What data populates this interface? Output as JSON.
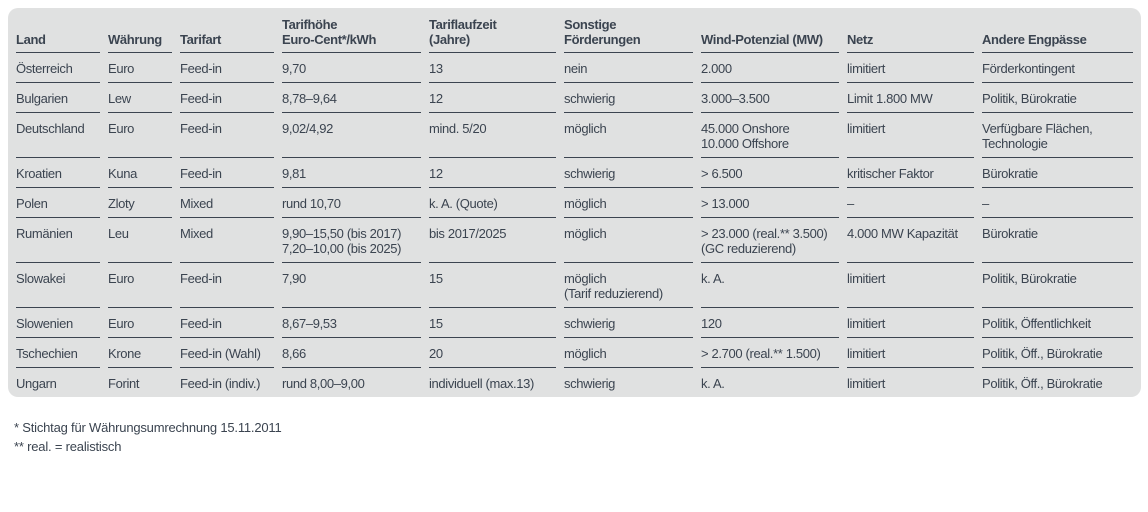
{
  "table": {
    "columns": [
      "Land",
      "Währung",
      "Tarifart",
      "Tarifhöhe\nEuro-Cent*/kWh",
      "Tariflaufzeit\n(Jahre)",
      "Sonstige\nFörderungen",
      "Wind-Potenzial (MW)",
      "Netz",
      "Andere Engpässe"
    ],
    "rows": [
      [
        "Österreich",
        "Euro",
        "Feed-in",
        "9,70",
        "13",
        "nein",
        "2.000",
        "limitiert",
        "Förderkontingent"
      ],
      [
        "Bulgarien",
        "Lew",
        "Feed-in",
        "8,78–9,64",
        "12",
        "schwierig",
        "3.000–3.500",
        "Limit 1.800 MW",
        "Politik, Bürokratie"
      ],
      [
        "Deutschland",
        "Euro",
        "Feed-in",
        "9,02/4,92",
        "mind. 5/20",
        "möglich",
        "45.000 Onshore\n10.000 Offshore",
        "limitiert",
        "Verfügbare Flächen,\nTechnologie"
      ],
      [
        "Kroatien",
        "Kuna",
        "Feed-in",
        "9,81",
        "12",
        "schwierig",
        "> 6.500",
        "kritischer Faktor",
        "Bürokratie"
      ],
      [
        "Polen",
        "Zloty",
        "Mixed",
        "rund 10,70",
        "k. A. (Quote)",
        "möglich",
        "> 13.000",
        "–",
        "–"
      ],
      [
        "Rumänien",
        "Leu",
        "Mixed",
        "9,90–15,50 (bis 2017)\n7,20–10,00 (bis 2025)",
        "bis 2017/2025",
        "möglich",
        "> 23.000 (real.** 3.500)\n(GC reduzierend)",
        "4.000 MW Kapazität",
        "Bürokratie"
      ],
      [
        "Slowakei",
        "Euro",
        "Feed-in",
        "7,90",
        "15",
        "möglich\n(Tarif reduzierend)",
        "k. A.",
        "limitiert",
        "Politik, Bürokratie"
      ],
      [
        "Slowenien",
        "Euro",
        "Feed-in",
        "8,67–9,53",
        "15",
        "schwierig",
        "120",
        "limitiert",
        "Politik, Öffentlichkeit"
      ],
      [
        "Tschechien",
        "Krone",
        "Feed-in (Wahl)",
        "8,66",
        "20",
        "möglich",
        "> 2.700 (real.** 1.500)",
        "limitiert",
        "Politik, Öff., Bürokratie"
      ],
      [
        "Ungarn",
        "Forint",
        "Feed-in (indiv.)",
        "rund 8,00–9,00",
        "individuell (max.13)",
        "schwierig",
        "k. A.",
        "limitiert",
        "Politik, Öff., Bürokratie"
      ]
    ]
  },
  "footnotes": [
    "* Stichtag für Währungsumrechnung 15.11.2011",
    "** real. = realistisch"
  ],
  "colors": {
    "table_background": "#e0e1e1",
    "text": "#3b4450",
    "page_background": "#ffffff"
  }
}
